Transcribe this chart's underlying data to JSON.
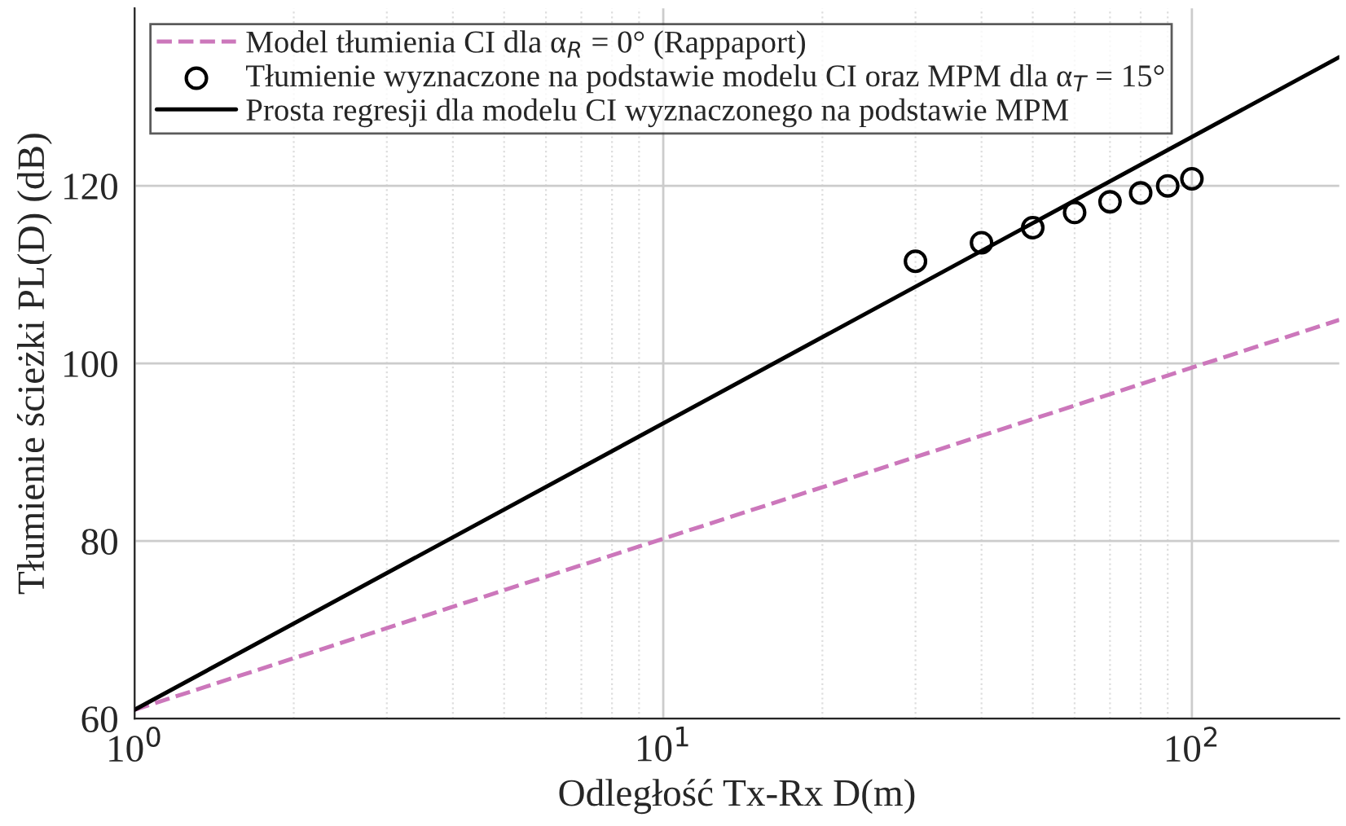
{
  "chart_data": {
    "type": "line",
    "xlabel": "Odległość Tx-Rx D(m)",
    "ylabel": "Tłumienie ścieżki PL(D) (dB)",
    "log": "x",
    "xlim": [
      1,
      190
    ],
    "ylim": [
      60,
      140
    ],
    "xticks": [
      {
        "value": 1,
        "label": "10$^{0}$"
      },
      {
        "value": 10,
        "label": "10$^{1}$"
      },
      {
        "value": 100,
        "label": "10$^{2}$"
      }
    ],
    "yticks": [
      60,
      80,
      100,
      120
    ],
    "grid": true,
    "legend": "top left",
    "series": [
      {
        "name": "Model tłumienia CI dla α$_{R}$ = 0° (Rappaport)",
        "color": "#cc77bb",
        "line_style": "dashed",
        "marker": "none",
        "x": [
          1,
          190
        ],
        "values": [
          61,
          104.9
        ]
      },
      {
        "name": "Tłumienie wyznaczone na podstawie modelu CI oraz MPM dla α$_{T}$ = 15°",
        "type": "scatter",
        "color": "#000000",
        "marker": "circle",
        "x": [
          30,
          40,
          50,
          60,
          70,
          80,
          90,
          100
        ],
        "values": [
          111.5,
          113.6,
          115.3,
          117.0,
          118.2,
          119.2,
          120.0,
          120.8
        ]
      },
      {
        "name": "Prosta regresji dla modelu CI wyznaczonego na podstawie MPM",
        "color": "#000000",
        "line_style": "solid",
        "marker": "none",
        "x": [
          1,
          190
        ],
        "values": [
          61,
          134.5
        ]
      }
    ]
  }
}
